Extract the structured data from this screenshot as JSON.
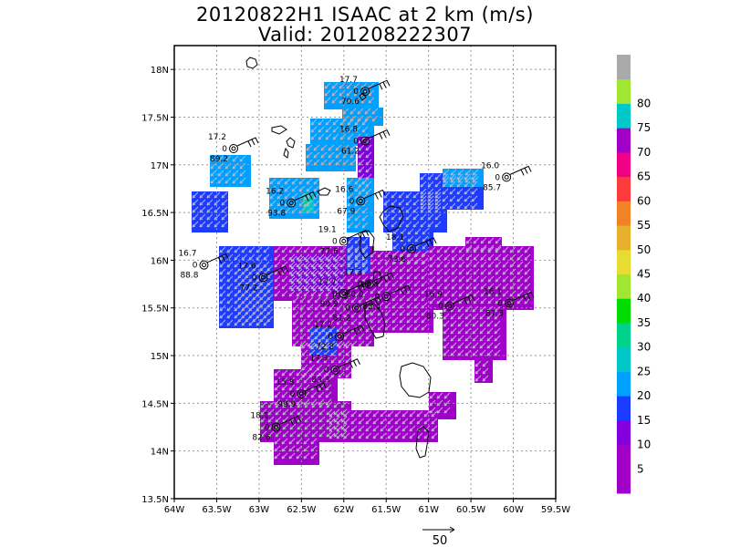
{
  "header": {
    "title_line1": "20120822H1 ISAAC at 2 km (m/s)",
    "title_line2": "Valid: 201208222307"
  },
  "map": {
    "lon_range": [
      -64,
      -59.5
    ],
    "lat_range": [
      13.5,
      18.25
    ],
    "lon_ticks": [
      {
        "v": -64,
        "label": "64W"
      },
      {
        "v": -63.5,
        "label": "63.5W"
      },
      {
        "v": -63,
        "label": "63W"
      },
      {
        "v": -62.5,
        "label": "62.5W"
      },
      {
        "v": -62,
        "label": "62W"
      },
      {
        "v": -61.5,
        "label": "61.5W"
      },
      {
        "v": -61,
        "label": "61W"
      },
      {
        "v": -60.5,
        "label": "60.5W"
      },
      {
        "v": -60,
        "label": "60W"
      },
      {
        "v": -59.5,
        "label": "59.5W"
      }
    ],
    "lat_ticks": [
      {
        "v": 13.5,
        "label": "13.5N"
      },
      {
        "v": 14,
        "label": "14N"
      },
      {
        "v": 14.5,
        "label": "14.5N"
      },
      {
        "v": 15,
        "label": "15N"
      },
      {
        "v": 15.5,
        "label": "15.5N"
      },
      {
        "v": 16,
        "label": "16N"
      },
      {
        "v": 16.5,
        "label": "16.5N"
      },
      {
        "v": 17,
        "label": "17N"
      },
      {
        "v": 17.5,
        "label": "17.5N"
      },
      {
        "v": 18,
        "label": "18N"
      }
    ],
    "grid": true,
    "dropsondes": [
      {
        "lon": -61.75,
        "lat": 17.77,
        "t": "17.7",
        "z": "0",
        "p": "70.6"
      },
      {
        "lon": -61.75,
        "lat": 17.25,
        "t": "16.8",
        "z": "0",
        "p": "61.2"
      },
      {
        "lon": -63.3,
        "lat": 17.17,
        "t": "17.2",
        "z": "0",
        "p": "89.2"
      },
      {
        "lon": -60.08,
        "lat": 16.87,
        "t": "16.0",
        "z": "0",
        "p": "85.7"
      },
      {
        "lon": -62.62,
        "lat": 16.6,
        "t": "16.2",
        "z": "0",
        "p": "93.8"
      },
      {
        "lon": -61.8,
        "lat": 16.62,
        "t": "16.6",
        "z": "0",
        "p": "67.9"
      },
      {
        "lon": -62.0,
        "lat": 16.2,
        "t": "19.1",
        "z": "0",
        "p": "77.6"
      },
      {
        "lon": -61.2,
        "lat": 16.12,
        "t": "18.1",
        "z": "0",
        "p": "73.6"
      },
      {
        "lon": -63.65,
        "lat": 15.95,
        "t": "16.7",
        "z": "0",
        "p": "88.8"
      },
      {
        "lon": -62.95,
        "lat": 15.82,
        "t": "17.6",
        "z": "0",
        "p": "77.2"
      },
      {
        "lon": -62.0,
        "lat": 15.65,
        "t": "17.7",
        "z": "0",
        "p": "90.9"
      },
      {
        "lon": -61.7,
        "lat": 15.75,
        "t": "17.3",
        "z": "0",
        "p": "80.0"
      },
      {
        "lon": -61.5,
        "lat": 15.62,
        "t": "17.4",
        "z": "0",
        "p": "83.4"
      },
      {
        "lon": -61.85,
        "lat": 15.5,
        "t": "17.2",
        "z": "0",
        "p": "81.2"
      },
      {
        "lon": -60.75,
        "lat": 15.52,
        "t": "16.9",
        "z": "0",
        "p": "80.3"
      },
      {
        "lon": -60.05,
        "lat": 15.55,
        "t": "16.1",
        "z": "0",
        "p": "87.3"
      },
      {
        "lon": -62.05,
        "lat": 15.2,
        "t": "17.2",
        "z": "0",
        "p": "72.8"
      },
      {
        "lon": -62.1,
        "lat": 14.85,
        "t": "17.3",
        "z": "0",
        "p": "83.3"
      },
      {
        "lon": -62.5,
        "lat": 14.6,
        "t": "15.8",
        "z": "0",
        "p": "99.9"
      },
      {
        "lon": -62.8,
        "lat": 14.25,
        "t": "18.1",
        "z": "0",
        "p": "82.6"
      }
    ],
    "reference_vector": {
      "label": "50"
    }
  },
  "colorbar": {
    "levels": [
      {
        "label": "",
        "color": "#a000c8"
      },
      {
        "label": "5",
        "color": "#a000c8"
      },
      {
        "label": "10",
        "color": "#8200dc"
      },
      {
        "label": "15",
        "color": "#1e3cff"
      },
      {
        "label": "20",
        "color": "#00a0ff"
      },
      {
        "label": "25",
        "color": "#00c8c8"
      },
      {
        "label": "30",
        "color": "#00d28c"
      },
      {
        "label": "35",
        "color": "#00dc00"
      },
      {
        "label": "40",
        "color": "#a0e632"
      },
      {
        "label": "45",
        "color": "#e6dc32"
      },
      {
        "label": "50",
        "color": "#e6af2d"
      },
      {
        "label": "55",
        "color": "#f08228"
      },
      {
        "label": "60",
        "color": "#fa3c3c"
      },
      {
        "label": "65",
        "color": "#f00082"
      },
      {
        "label": "70",
        "color": "#a000c8"
      },
      {
        "label": "75",
        "color": "#00c8c8"
      },
      {
        "label": "80",
        "color": "#a0e632"
      },
      {
        "label": "",
        "color": "#aaaaaa"
      }
    ]
  }
}
